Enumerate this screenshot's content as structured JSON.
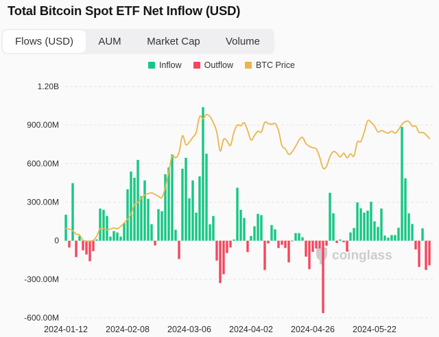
{
  "header": {
    "title": "Total Bitcoin Spot ETF Net Inflow (USD)"
  },
  "tabs": [
    {
      "label": "Flows (USD)",
      "active": true
    },
    {
      "label": "AUM",
      "active": false
    },
    {
      "label": "Market Cap",
      "active": false
    },
    {
      "label": "Volume",
      "active": false
    }
  ],
  "legend": [
    {
      "label": "Inflow",
      "color": "#16c784"
    },
    {
      "label": "Outflow",
      "color": "#f6465d"
    },
    {
      "label": "BTC Price",
      "color": "#ebb54a"
    }
  ],
  "watermark": {
    "text": "coinglass",
    "color": "#cdcdcd"
  },
  "chart_data": {
    "type": "bar",
    "title": "Total Bitcoin Spot ETF Net Inflow (USD)",
    "xlabel": "",
    "ylabel": "",
    "grid": true,
    "legend_position": "top-center",
    "value_unit": "USD millions",
    "ylim": [
      -600,
      1200
    ],
    "y_ticks": [
      {
        "value": 1200,
        "label": "1.20B"
      },
      {
        "value": 900,
        "label": "900.00M"
      },
      {
        "value": 600,
        "label": "600.00M"
      },
      {
        "value": 300,
        "label": "300.00M"
      },
      {
        "value": 0,
        "label": "0"
      },
      {
        "value": -300,
        "label": "-300.00M"
      },
      {
        "value": -600,
        "label": "-600.00M"
      }
    ],
    "x_ticks": [
      {
        "index": 0,
        "label": "2024-01-12"
      },
      {
        "index": 18,
        "label": "2024-02-08"
      },
      {
        "index": 36,
        "label": "2024-03-06"
      },
      {
        "index": 54,
        "label": "2024-04-02"
      },
      {
        "index": 72,
        "label": "2024-04-26"
      },
      {
        "index": 90,
        "label": "2024-05-22"
      }
    ],
    "series": [
      {
        "name": "Net Flow (Inflow positive / Outflow negative)",
        "kind": "bar",
        "positive_color": "#16c784",
        "negative_color": "#f6465d",
        "values": [
          202,
          -53,
          448,
          -128,
          38,
          -75,
          -107,
          -160,
          -82,
          10,
          250,
          240,
          192,
          32,
          75,
          64,
          32,
          138,
          400,
          538,
          490,
          629,
          346,
          469,
          325,
          128,
          -37,
          245,
          229,
          517,
          570,
          671,
          85,
          -143,
          560,
          645,
          330,
          469,
          218,
          501,
          1039,
          677,
          128,
          192,
          -155,
          -330,
          -261,
          -96,
          -53,
          9,
          412,
          240,
          177,
          -89,
          37,
          112,
          209,
          199,
          -228,
          -21,
          122,
          88,
          -57,
          -32,
          -57,
          -169,
          -5,
          59,
          59,
          27,
          -124,
          -222,
          -87,
          -60,
          -60,
          -564,
          -39,
          373,
          213,
          -18,
          9,
          -12,
          -85,
          64,
          98,
          298,
          252,
          218,
          234,
          303,
          151,
          107,
          250,
          40,
          24,
          44,
          44,
          101,
          886,
          485,
          213,
          130,
          -68,
          -204,
          96,
          -228,
          -192
        ]
      },
      {
        "name": "BTC Price",
        "kind": "line",
        "axis": "secondary (hidden)",
        "y2lim": [
          20000,
          80000
        ],
        "color": "#ebb54a",
        "values": [
          43100,
          43000,
          42600,
          41700,
          41500,
          40100,
          39900,
          39900,
          40100,
          41200,
          43100,
          43100,
          42800,
          43000,
          43300,
          43100,
          43700,
          44600,
          45600,
          46900,
          49400,
          49900,
          51000,
          51900,
          52200,
          52400,
          52000,
          51500,
          51200,
          53800,
          57900,
          62000,
          61500,
          62900,
          67200,
          64900,
          65600,
          66800,
          68100,
          72200,
          71600,
          72700,
          72200,
          70600,
          68200,
          63300,
          66300,
          65900,
          64700,
          68100,
          70000,
          69800,
          70600,
          68600,
          66100,
          67300,
          68400,
          68200,
          70700,
          70400,
          70200,
          70400,
          68600,
          64700,
          63800,
          62400,
          63100,
          64500,
          66100,
          66800,
          65200,
          64500,
          64100,
          63800,
          61700,
          58800,
          59300,
          61800,
          63100,
          62700,
          61700,
          62700,
          61500,
          62500,
          62000,
          65600,
          65700,
          68200,
          71100,
          70700,
          69700,
          68200,
          68600,
          68200,
          67900,
          68400,
          67900,
          68800,
          70200,
          70900,
          70900,
          69700,
          69700,
          68100,
          68100,
          67500,
          66500
        ]
      }
    ]
  }
}
